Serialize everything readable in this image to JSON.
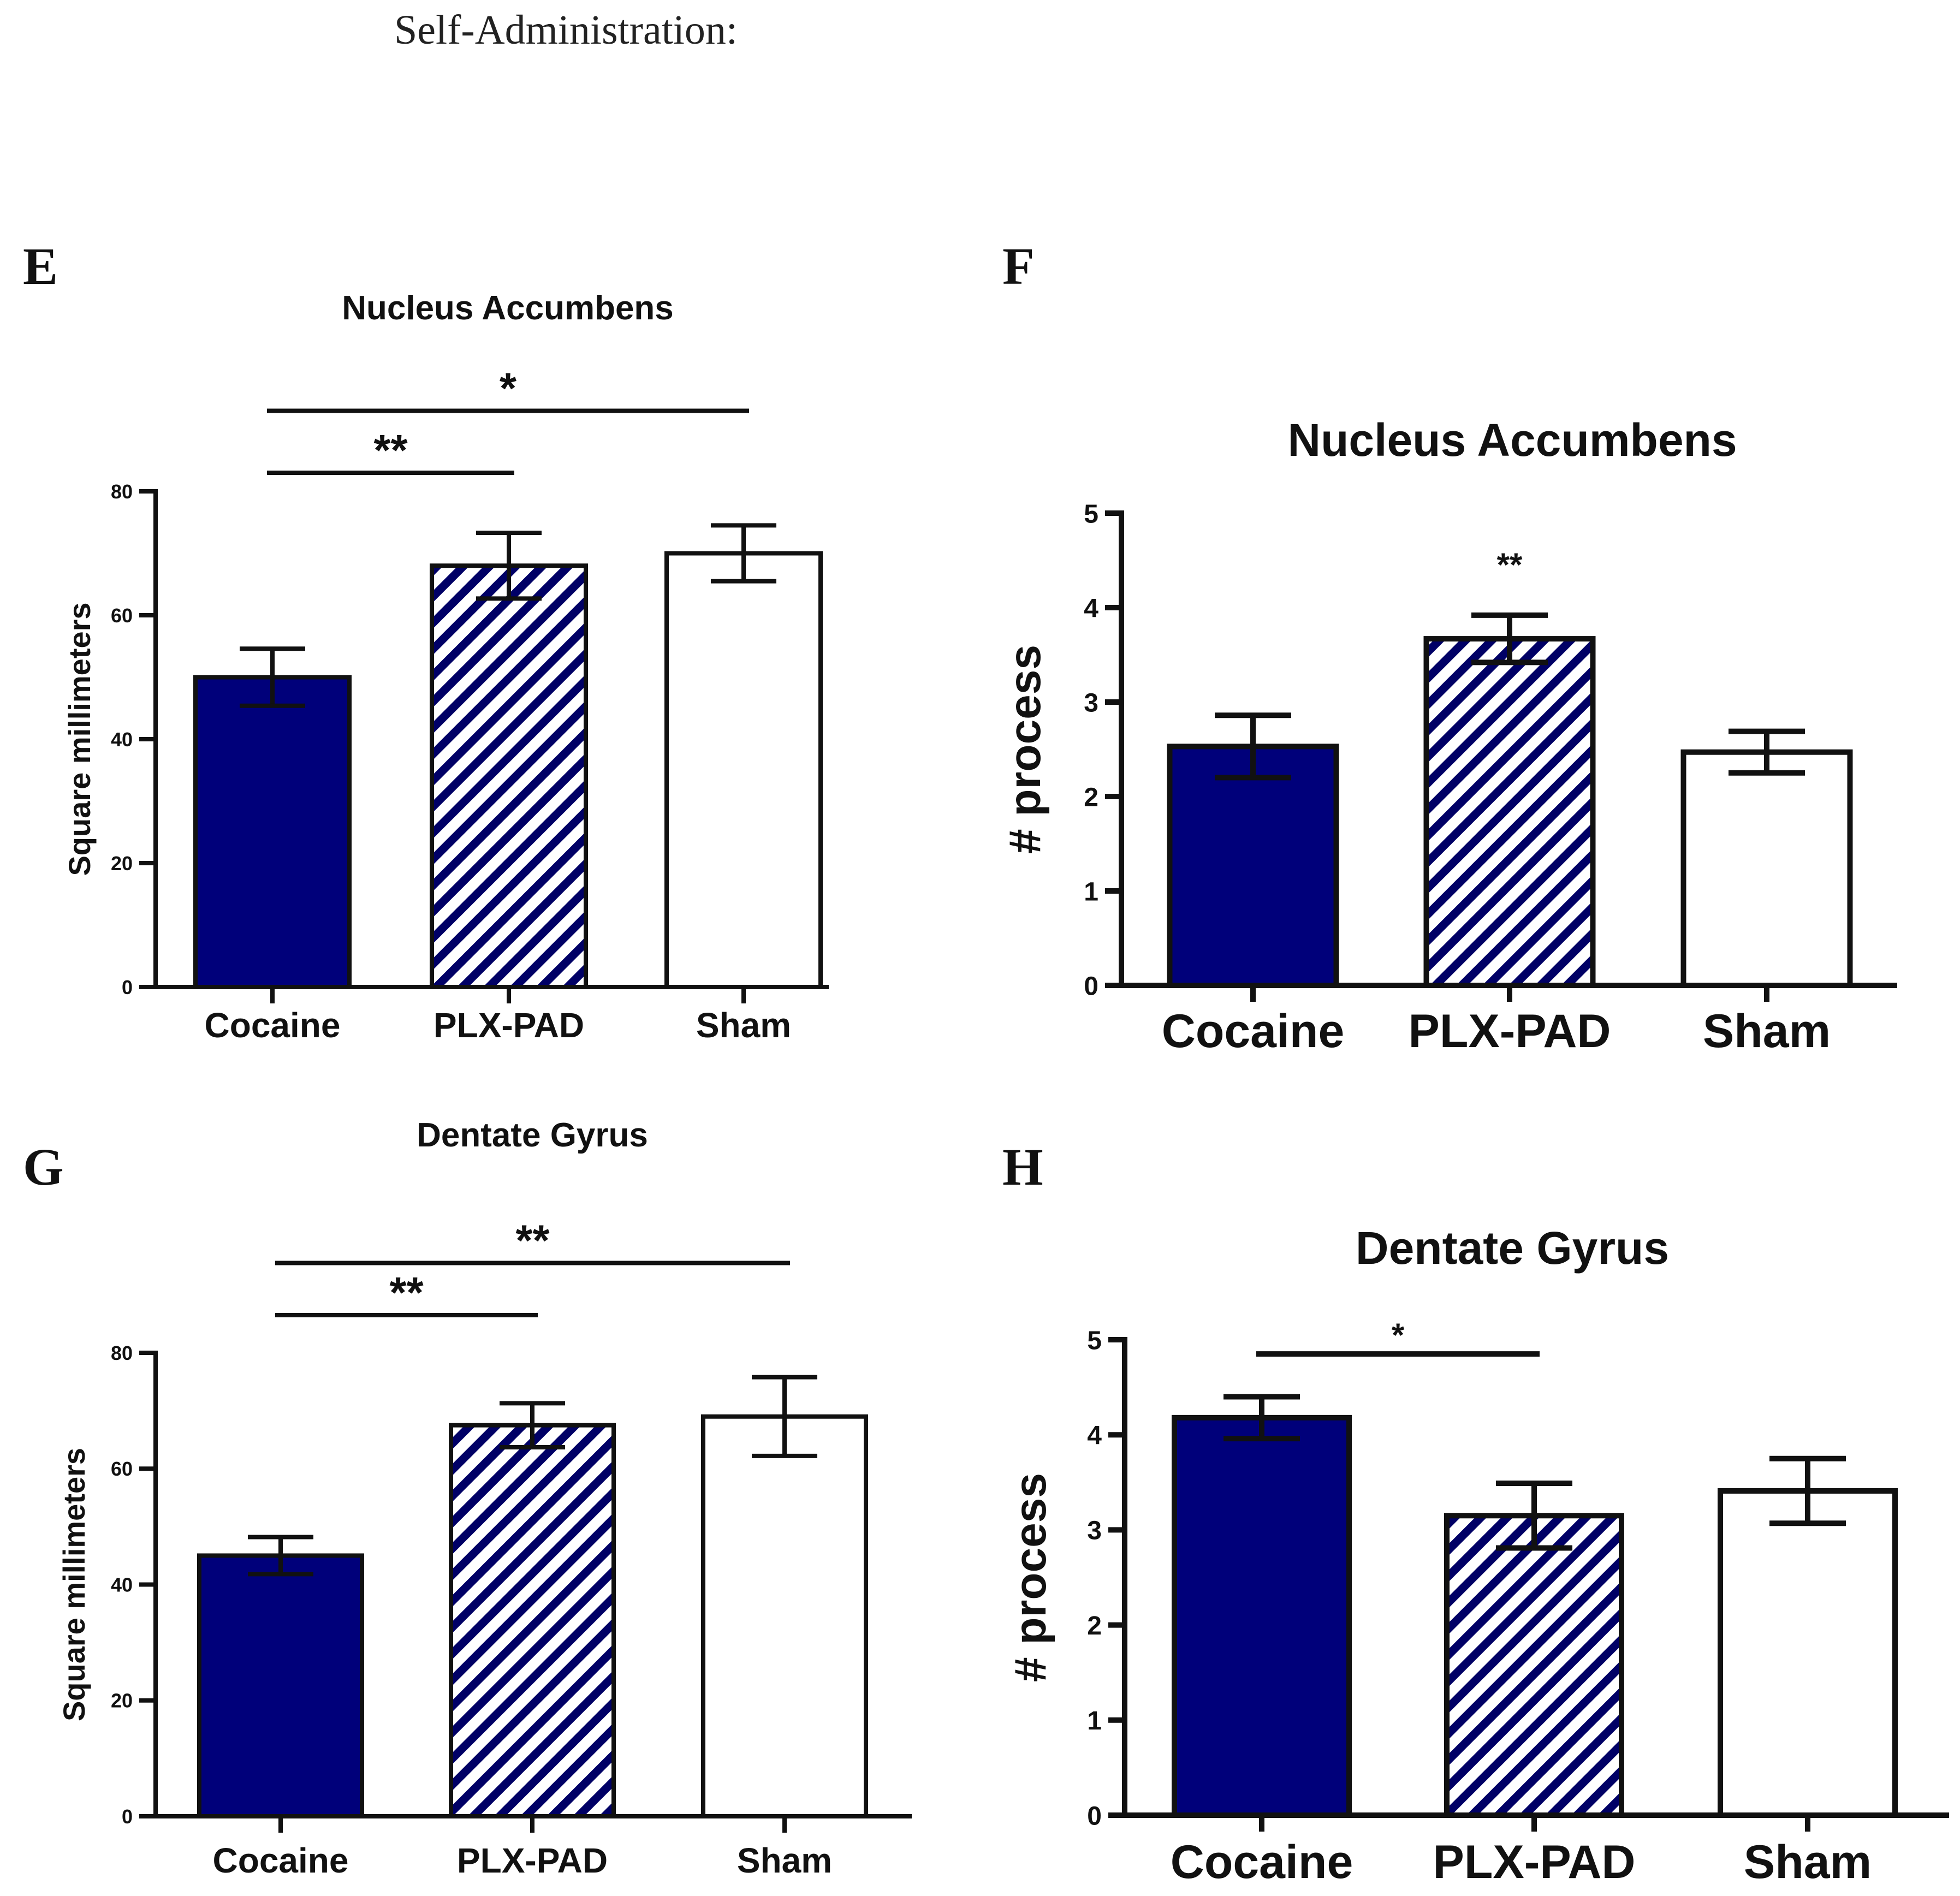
{
  "heading": "Self-Administration:",
  "colors": {
    "cocaine": "#00007a",
    "hatch": "#000066",
    "stroke": "#111111",
    "sham": "#ffffff"
  },
  "chart_data": [
    {
      "panel": "E",
      "type": "bar",
      "title": "Nucleus Accumbens",
      "ylabel": "Square millimeters",
      "xlabel": "",
      "ylim": [
        0,
        80
      ],
      "yticks": [
        "0",
        "20",
        "40",
        "60",
        "80"
      ],
      "categories": [
        "Cocaine",
        "PLX-PAD",
        "Sham"
      ],
      "values": [
        50,
        68,
        70
      ],
      "errors": [
        4.6,
        5.3,
        4.5
      ],
      "fills": [
        "solid",
        "hatch",
        "white"
      ],
      "significance": [
        {
          "from": 0,
          "to": 1,
          "label": "**",
          "y": 83
        },
        {
          "from": 0,
          "to": 2,
          "label": "*",
          "y": 93
        }
      ]
    },
    {
      "panel": "F",
      "type": "bar",
      "title": "Nucleus Accumbens",
      "ylabel": "# process",
      "xlabel": "",
      "ylim": [
        0,
        5
      ],
      "yticks": [
        "0",
        "1",
        "2",
        "3",
        "4",
        "5"
      ],
      "categories": [
        "Cocaine",
        "PLX-PAD",
        "Sham"
      ],
      "values": [
        2.53,
        3.67,
        2.47
      ],
      "errors": [
        0.33,
        0.25,
        0.22
      ],
      "fills": [
        "solid",
        "hatch",
        "white"
      ],
      "point_labels": [
        {
          "index": 1,
          "label": "**",
          "y": 4.45
        }
      ]
    },
    {
      "panel": "G",
      "type": "bar",
      "title": "Dentate Gyrus",
      "ylabel": "Square millimeters",
      "xlabel": "",
      "ylim": [
        0,
        80
      ],
      "yticks": [
        "0",
        "20",
        "40",
        "60",
        "80"
      ],
      "categories": [
        "Cocaine",
        "PLX-PAD",
        "Sham"
      ],
      "values": [
        45,
        67.5,
        69
      ],
      "errors": [
        3.2,
        3.8,
        6.8
      ],
      "fills": [
        "solid",
        "hatch",
        "white"
      ],
      "significance": [
        {
          "from": 0,
          "to": 1,
          "label": "**",
          "y": 86.5
        },
        {
          "from": 0,
          "to": 2,
          "label": "**",
          "y": 95.5
        }
      ]
    },
    {
      "panel": "H",
      "type": "bar",
      "title": "Dentate Gyrus",
      "ylabel": "# process",
      "xlabel": "",
      "ylim": [
        0,
        5
      ],
      "yticks": [
        "0",
        "1",
        "2",
        "3",
        "4",
        "5"
      ],
      "categories": [
        "Cocaine",
        "PLX-PAD",
        "Sham"
      ],
      "values": [
        4.18,
        3.15,
        3.41
      ],
      "errors": [
        0.22,
        0.34,
        0.34
      ],
      "fills": [
        "solid",
        "hatch",
        "white"
      ],
      "significance": [
        {
          "from": 0,
          "to": 1,
          "label": "*",
          "y": 4.85
        }
      ]
    }
  ]
}
